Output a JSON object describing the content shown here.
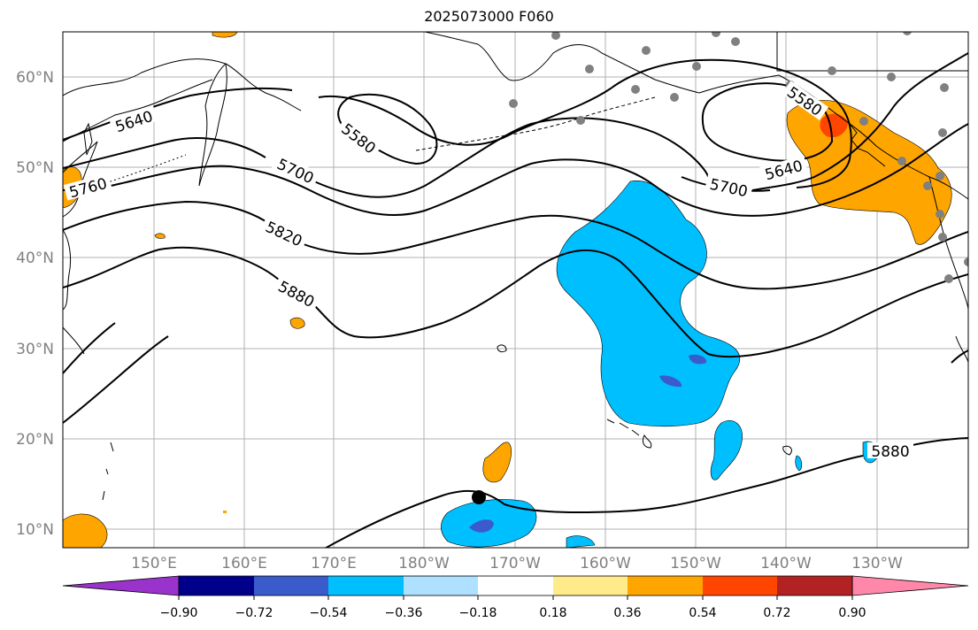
{
  "title": "2025073000 F060",
  "colors": {
    "land_outline": "#000000",
    "grid": "#b0b0b0",
    "tick_label": "#808080",
    "station_dot": "#808080",
    "marker": "#000000"
  },
  "lat_labels": [
    "60°N",
    "50°N",
    "40°N",
    "30°N",
    "20°N",
    "10°N"
  ],
  "lon_labels": [
    "150°E",
    "160°E",
    "170°E",
    "180°W",
    "170°W",
    "160°W",
    "150°W",
    "140°W",
    "130°W"
  ],
  "contour_labels": [
    {
      "text": "5640",
      "name": "contour-label-5640-west"
    },
    {
      "text": "5580",
      "name": "contour-label-5580-west"
    },
    {
      "text": "5700",
      "name": "contour-label-5700-west"
    },
    {
      "text": "5760",
      "name": "contour-label-5760-west"
    },
    {
      "text": "5820",
      "name": "contour-label-5820"
    },
    {
      "text": "5880",
      "name": "contour-label-5880-west"
    },
    {
      "text": "5580",
      "name": "contour-label-5580-east"
    },
    {
      "text": "5640",
      "name": "contour-label-5640-east"
    },
    {
      "text": "5700",
      "name": "contour-label-5700-east"
    },
    {
      "text": "5880",
      "name": "contour-label-5880-east"
    }
  ],
  "colorbar": {
    "colors": [
      "#9933cc",
      "#00008b",
      "#3a5bcc",
      "#00bfff",
      "#aee0ff",
      "#ffffff",
      "#ffeb8a",
      "#ffa500",
      "#ff4500",
      "#b22222",
      "#ff88aa"
    ],
    "tick_labels": [
      "−0.90",
      "−0.72",
      "−0.54",
      "−0.36",
      "−0.18",
      "0.18",
      "0.36",
      "0.54",
      "0.72",
      "0.90"
    ]
  }
}
